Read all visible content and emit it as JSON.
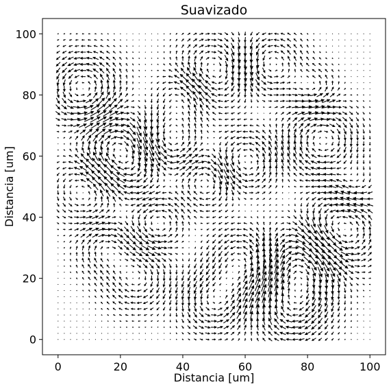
{
  "chart_data": {
    "type": "quiver",
    "title": "Suavizado",
    "xlabel": "Distancia [um]",
    "ylabel": "Distancia [um]",
    "xlim": [
      -5,
      105
    ],
    "ylim": [
      -5,
      105
    ],
    "xticks": [
      0,
      20,
      40,
      60,
      80,
      100
    ],
    "yticks": [
      0,
      20,
      40,
      60,
      80,
      100
    ],
    "grid_step": 2,
    "grid_range": [
      0,
      100
    ],
    "arrow_color": "#000000",
    "arrow_scale_um_per_unit": 2.0,
    "vortices": [
      {
        "x": 8,
        "y": 82,
        "strength": 1.2,
        "radius": 8
      },
      {
        "x": 20,
        "y": 60,
        "strength": -1.3,
        "radius": 9
      },
      {
        "x": 10,
        "y": 50,
        "strength": 1.0,
        "radius": 8
      },
      {
        "x": 35,
        "y": 65,
        "strength": 1.1,
        "radius": 7
      },
      {
        "x": 50,
        "y": 88,
        "strength": -1.0,
        "radius": 8
      },
      {
        "x": 68,
        "y": 90,
        "strength": 1.0,
        "radius": 7
      },
      {
        "x": 85,
        "y": 65,
        "strength": -1.1,
        "radius": 8
      },
      {
        "x": 60,
        "y": 58,
        "strength": 1.0,
        "radius": 7
      },
      {
        "x": 48,
        "y": 52,
        "strength": -0.9,
        "radius": 6
      },
      {
        "x": 90,
        "y": 35,
        "strength": 1.2,
        "radius": 9
      },
      {
        "x": 78,
        "y": 25,
        "strength": -1.3,
        "radius": 9
      },
      {
        "x": 60,
        "y": 25,
        "strength": 1.1,
        "radius": 8
      },
      {
        "x": 25,
        "y": 20,
        "strength": -0.9,
        "radius": 7
      },
      {
        "x": 50,
        "y": 12,
        "strength": 1.0,
        "radius": 7
      },
      {
        "x": 75,
        "y": 10,
        "strength": -1.0,
        "radius": 8
      },
      {
        "x": 32,
        "y": 38,
        "strength": 0.9,
        "radius": 6
      },
      {
        "x": 15,
        "y": 30,
        "strength": -0.8,
        "radius": 6
      },
      {
        "x": 82,
        "y": 82,
        "strength": 0.8,
        "radius": 5
      },
      {
        "x": 95,
        "y": 50,
        "strength": -0.7,
        "radius": 5
      },
      {
        "x": 40,
        "y": 80,
        "strength": 0.8,
        "radius": 6
      }
    ]
  }
}
